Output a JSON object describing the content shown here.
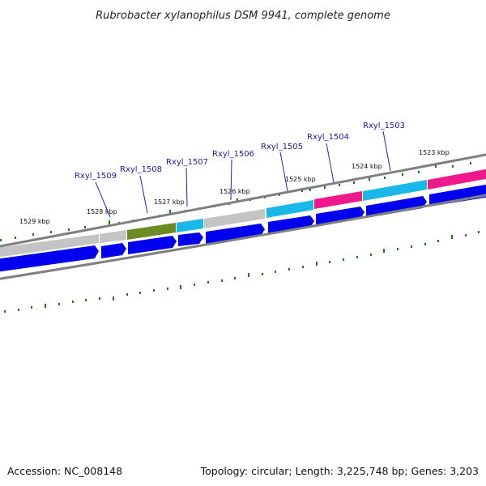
{
  "title": "Rubrobacter xylanophilus DSM 9941, complete genome",
  "footer": {
    "accession": "Accession: NC_008148",
    "topology": "Topology: circular; Length: 3,225,748 bp; Genes: 3,203"
  },
  "colors": {
    "gray_gene": "#c4c4c4",
    "olive_gene": "#6b8c22",
    "cyan_gene": "#1ab8e8",
    "magenta_gene": "#ee1a8c",
    "strand_blue": "#0000ee",
    "tick_green": "#1a7a1a",
    "leader_blue": "#2222cc",
    "backbone": "#808080"
  },
  "gene_labels": [
    "Rxyl_1509",
    "Rxyl_1508",
    "Rxyl_1507",
    "Rxyl_1506",
    "Rxyl_1505",
    "Rxyl_1504",
    "Rxyl_1503"
  ],
  "kbp_labels": [
    "1529 kbp",
    "1528 kbp",
    "1527 kbp",
    "1526 kbp",
    "1525 kbp",
    "1524 kbp",
    "1523 kbp"
  ]
}
